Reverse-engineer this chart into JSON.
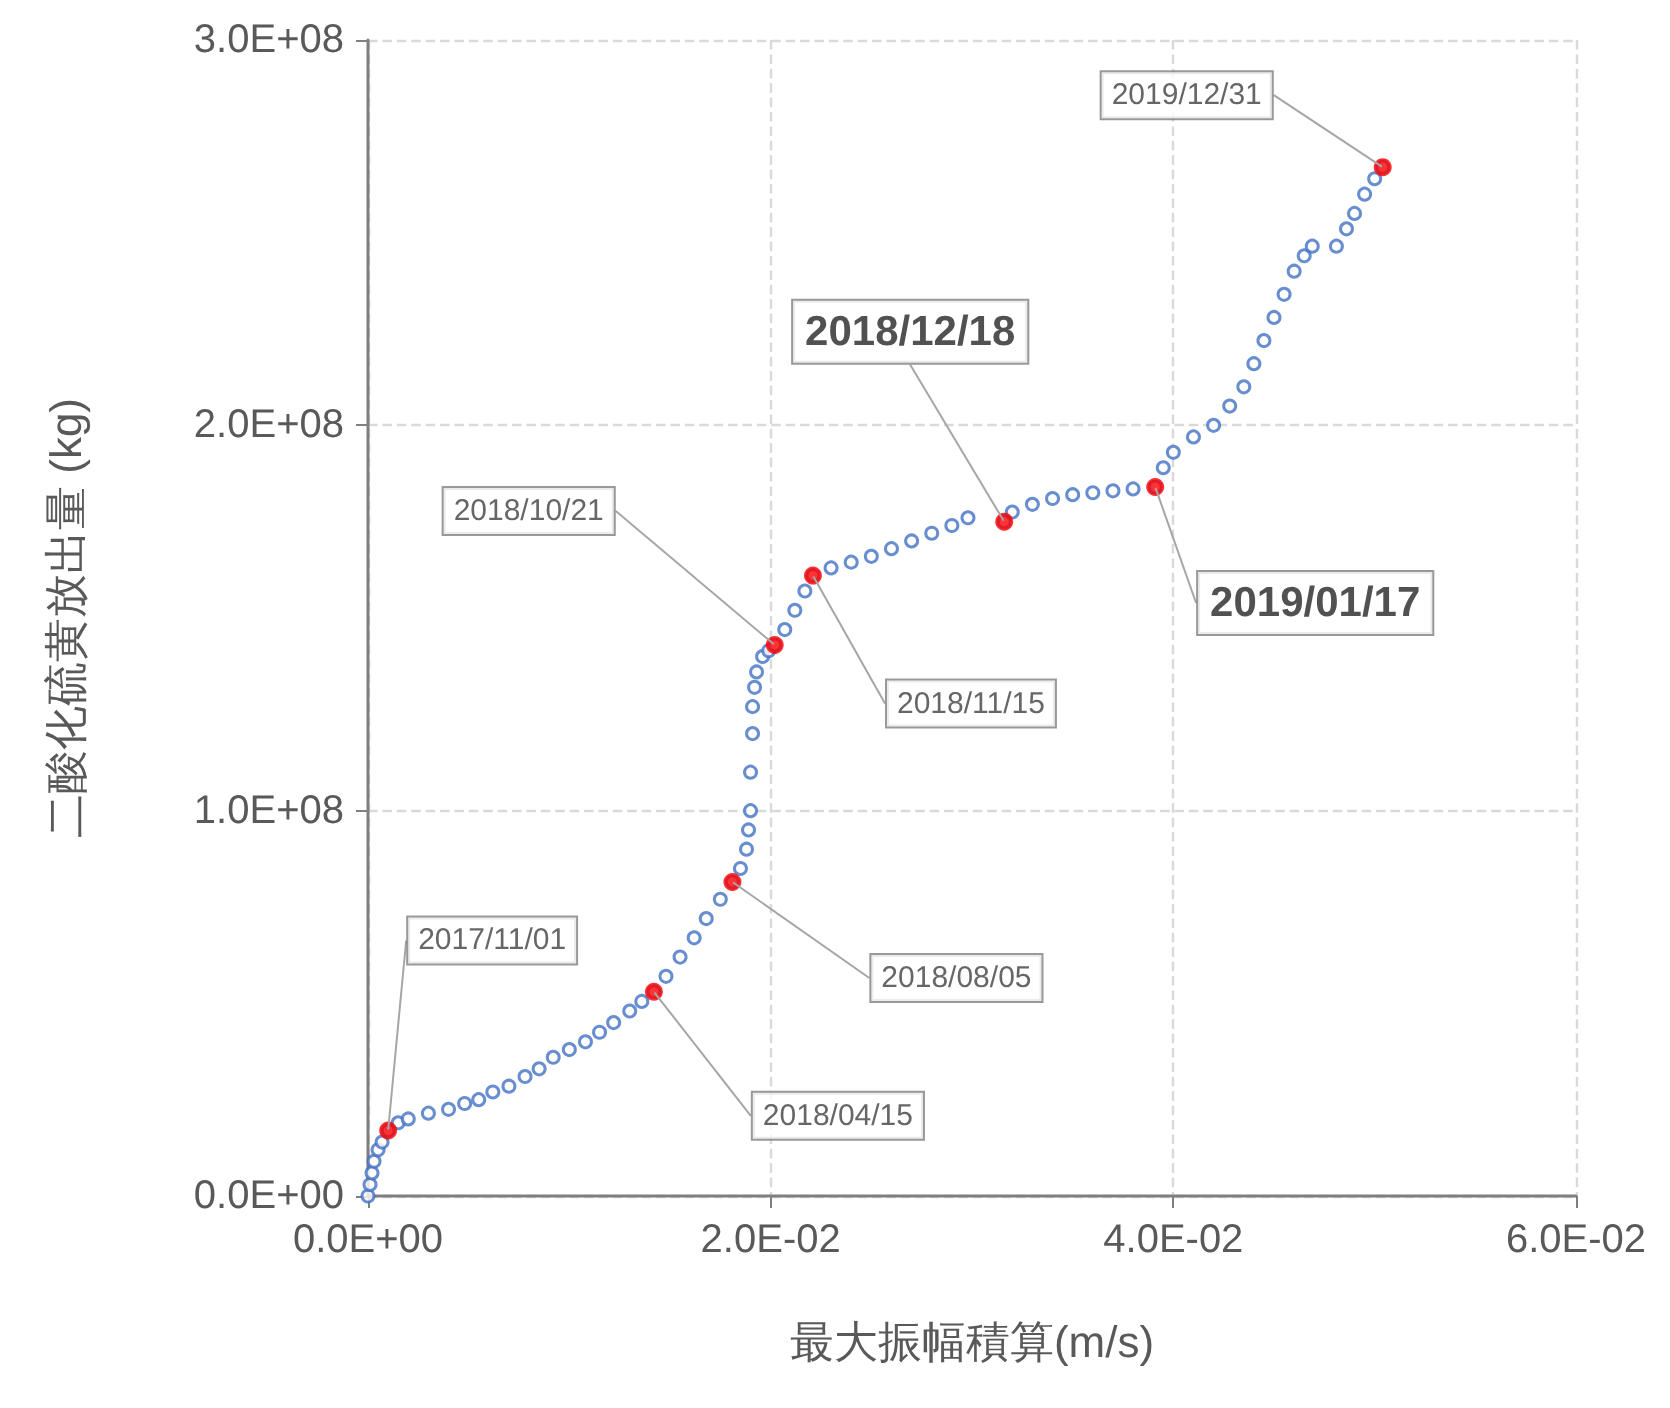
{
  "chart_data": {
    "type": "scatter",
    "xlabel": "最大振幅積算(m/s)",
    "ylabel": "二酸化硫黄放出量 (kg)",
    "xlim": [
      0,
      0.06
    ],
    "ylim": [
      0,
      300000000
    ],
    "xticks": [
      {
        "value": 0,
        "label": "0.0E+00"
      },
      {
        "value": 0.02,
        "label": "2.0E-02"
      },
      {
        "value": 0.04,
        "label": "4.0E-02"
      },
      {
        "value": 0.06,
        "label": "6.0E-02"
      }
    ],
    "yticks": [
      {
        "value": 0,
        "label": "0.0E+00"
      },
      {
        "value": 100000000,
        "label": "1.0E+08"
      },
      {
        "value": 200000000,
        "label": "2.0E+08"
      },
      {
        "value": 300000000,
        "label": "3.0E+08"
      }
    ],
    "grid": true,
    "marker": "circle",
    "series": [
      {
        "color": "#4472c4",
        "x": [
          0,
          0.0001,
          0.0002,
          0.0003,
          0.0005,
          0.0007,
          0.001,
          0.0015,
          0.002,
          0.003,
          0.004,
          0.0048,
          0.0055,
          0.0062,
          0.007,
          0.0078,
          0.0085,
          0.0092,
          0.01,
          0.0108,
          0.0115,
          0.0122,
          0.013,
          0.0136,
          0.0142,
          0.0148,
          0.0155,
          0.0162,
          0.0168,
          0.0175,
          0.0181,
          0.0185,
          0.0188,
          0.0189,
          0.019,
          0.019,
          0.0191,
          0.0191,
          0.0192,
          0.0193,
          0.0196,
          0.0199,
          0.0202,
          0.0207,
          0.0212,
          0.0217,
          0.0221,
          0.023,
          0.024,
          0.025,
          0.026,
          0.027,
          0.028,
          0.029,
          0.0298,
          0.0316,
          0.032,
          0.033,
          0.034,
          0.035,
          0.036,
          0.037,
          0.038,
          0.0391,
          0.0395,
          0.04,
          0.041,
          0.042,
          0.0428,
          0.0435,
          0.044,
          0.0445,
          0.045,
          0.0455,
          0.046,
          0.0465,
          0.0469,
          0.0481,
          0.0486,
          0.049,
          0.0495,
          0.05,
          0.0504
        ],
        "values": [
          0,
          3000000,
          6000000,
          9000000,
          12000000,
          14000000,
          17000000,
          19000000,
          20000000,
          21500000,
          22500000,
          24000000,
          25000000,
          27000000,
          28500000,
          31000000,
          33000000,
          36000000,
          38000000,
          40000000,
          42500000,
          45000000,
          48000000,
          50500000,
          53000000,
          57000000,
          62000000,
          67000000,
          72000000,
          77000000,
          81500000,
          85000000,
          90000000,
          95000000,
          100000000,
          110000000,
          120000000,
          127000000,
          132000000,
          136000000,
          140000000,
          141500000,
          143000000,
          147000000,
          152000000,
          157000000,
          161000000,
          163000000,
          164500000,
          166000000,
          168000000,
          170000000,
          172000000,
          174000000,
          176000000,
          175000000,
          177500000,
          179500000,
          181000000,
          182000000,
          182500000,
          183000000,
          183500000,
          184000000,
          189000000,
          193000000,
          197000000,
          200000000,
          205000000,
          210000000,
          216000000,
          222000000,
          228000000,
          234000000,
          240000000,
          244000000,
          246500000,
          246500000,
          251000000,
          255000000,
          260000000,
          264000000,
          267000000
        ]
      },
      {
        "color": "#ff0000",
        "x": [
          0.001,
          0.0142,
          0.0181,
          0.0202,
          0.0221,
          0.0316,
          0.0391,
          0.0504
        ],
        "values": [
          17000000,
          53000000,
          81500000,
          143000000,
          161000000,
          175000000,
          184000000,
          267000000
        ]
      }
    ],
    "annotations": [
      {
        "text": "2017/11/01",
        "x": 0.001,
        "y": 17000000
      },
      {
        "text": "2018/04/15",
        "x": 0.0142,
        "y": 53000000
      },
      {
        "text": "2018/08/05",
        "x": 0.0181,
        "y": 81500000
      },
      {
        "text": "2018/10/21",
        "x": 0.0202,
        "y": 143000000
      },
      {
        "text": "2018/11/15",
        "x": 0.0221,
        "y": 161000000
      },
      {
        "text": "2018/12/18",
        "x": 0.0316,
        "y": 175000000
      },
      {
        "text": "2019/01/17",
        "x": 0.0391,
        "y": 184000000
      },
      {
        "text": "2019/12/31",
        "x": 0.0504,
        "y": 267000000
      }
    ]
  }
}
